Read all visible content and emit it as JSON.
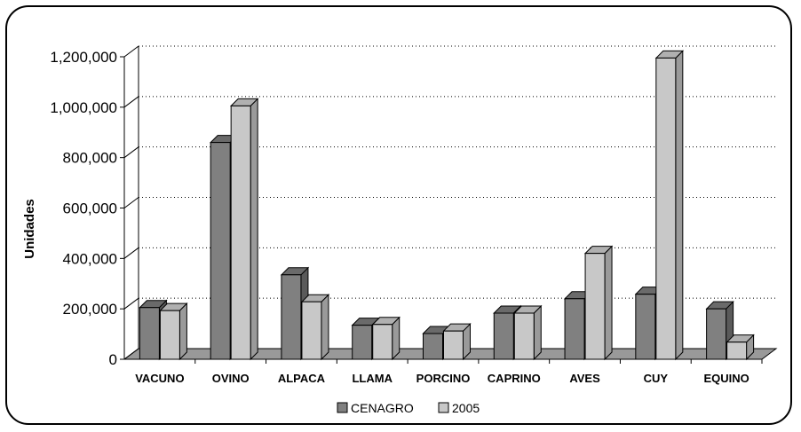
{
  "chart_data": {
    "type": "bar",
    "title": "",
    "xlabel": "",
    "ylabel": "Unidades",
    "ylim": [
      0,
      1200000
    ],
    "yticks": [
      0,
      200000,
      400000,
      600000,
      800000,
      1000000,
      1200000
    ],
    "ytick_labels": [
      "0",
      "200,000",
      "400,000",
      "600,000",
      "800,000",
      "1,000,000",
      "1,200,000"
    ],
    "grid": true,
    "legend_position": "bottom",
    "categories": [
      "VACUNO",
      "OVINO",
      "ALPACA",
      "LLAMA",
      "PORCINO",
      "CAPRINO",
      "AVES",
      "CUY",
      "EQUINO"
    ],
    "series": [
      {
        "name": "CENAGRO",
        "color": "#808080",
        "values": [
          205000,
          860000,
          335000,
          135000,
          102000,
          183000,
          240000,
          258000,
          200000
        ]
      },
      {
        "name": "2005",
        "color": "#c8c8c8",
        "values": [
          193000,
          1005000,
          228000,
          138000,
          112000,
          183000,
          420000,
          1195000,
          68000
        ]
      }
    ]
  }
}
